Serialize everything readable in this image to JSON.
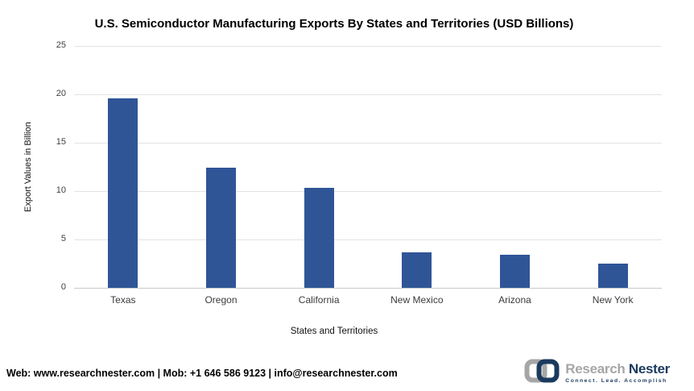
{
  "chart_data": {
    "type": "bar",
    "title": "U.S. Semiconductor Manufacturing Exports By States and Territories (USD Billions)",
    "categories": [
      "Texas",
      "Oregon",
      "California",
      "New Mexico",
      "Arizona",
      "New York"
    ],
    "values": [
      19.6,
      12.4,
      10.3,
      3.7,
      3.4,
      2.5
    ],
    "xlabel": "States and Territories",
    "ylabel": "Export Values in Billion",
    "ylim": [
      0,
      25
    ],
    "yticks": [
      0,
      5,
      10,
      15,
      20,
      25
    ],
    "grid": true,
    "legend": false,
    "bar_color": "#2F5597",
    "gridline_color": "#E3E3E3"
  },
  "footer": {
    "contact_line": "Web: www.researchnester.com | Mob: +1 646 586 9123 |  info@researchnester.com"
  },
  "logo": {
    "name_part1": "Research",
    "name_part2": "Nester",
    "tagline": "Connect. Lead. Accomplish",
    "colors": {
      "gray": "#A6A6A6",
      "navy": "#1B3A5E"
    }
  }
}
